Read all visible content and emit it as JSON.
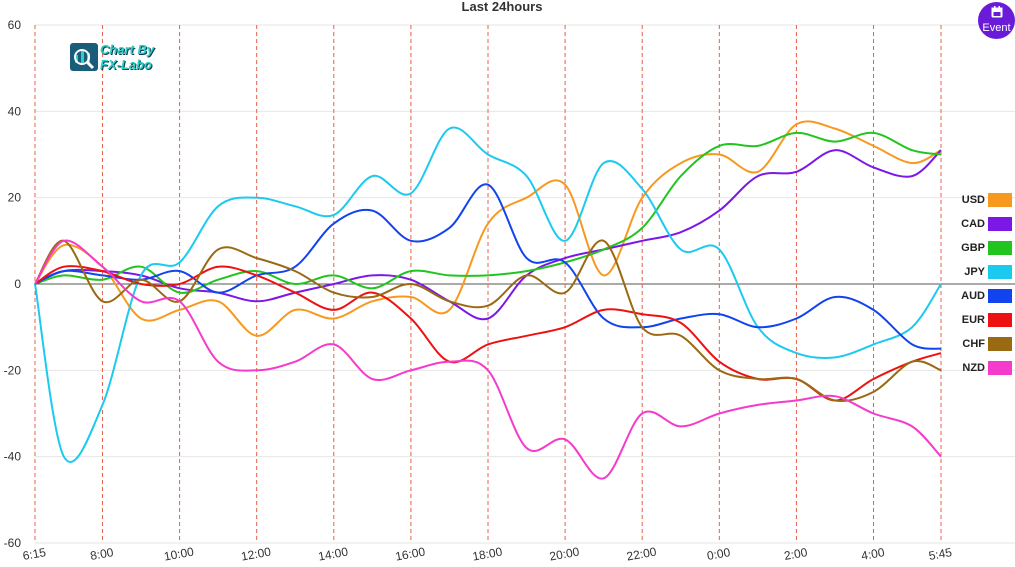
{
  "chart_data": {
    "type": "line",
    "title": "Last 24hours",
    "ylim": [
      -60,
      60
    ],
    "yticks": [
      -60,
      -40,
      -20,
      0,
      20,
      40,
      60
    ],
    "xlim": [
      6.25,
      29.75
    ],
    "xticks": [
      {
        "v": 6.25,
        "label": "6:15"
      },
      {
        "v": 8,
        "label": "8:00"
      },
      {
        "v": 10,
        "label": "10:00"
      },
      {
        "v": 12,
        "label": "12:00"
      },
      {
        "v": 14,
        "label": "14:00"
      },
      {
        "v": 16,
        "label": "16:00"
      },
      {
        "v": 18,
        "label": "18:00"
      },
      {
        "v": 20,
        "label": "20:00"
      },
      {
        "v": 22,
        "label": "22:00"
      },
      {
        "v": 24,
        "label": "0:00"
      },
      {
        "v": 26,
        "label": "2:00"
      },
      {
        "v": 28,
        "label": "4:00"
      },
      {
        "v": 29.75,
        "label": "5:45"
      }
    ],
    "x": [
      6.25,
      7,
      8,
      9,
      10,
      11,
      12,
      13,
      14,
      15,
      16,
      17,
      18,
      19,
      20,
      21,
      22,
      23,
      24,
      25,
      26,
      27,
      28,
      29,
      29.75
    ],
    "series": [
      {
        "name": "USD",
        "color": "#f7991f",
        "values": [
          0,
          9,
          4,
          -8,
          -6,
          -4,
          -12,
          -6,
          -8,
          -4,
          -3,
          -6,
          14,
          20,
          23,
          2,
          20,
          28,
          30,
          26,
          37,
          36,
          32,
          28,
          31
        ]
      },
      {
        "name": "CAD",
        "color": "#7b18e8",
        "values": [
          0,
          3,
          3,
          2,
          -1,
          -2,
          -4,
          -2,
          0,
          2,
          1,
          -4,
          -8,
          2,
          6,
          8,
          10,
          12,
          17,
          25,
          26,
          31,
          27,
          25,
          31
        ]
      },
      {
        "name": "GBP",
        "color": "#22c51f",
        "values": [
          0,
          2,
          1,
          4,
          -2,
          1,
          3,
          0,
          2,
          -1,
          3,
          2,
          2,
          3,
          5,
          8,
          13,
          25,
          32,
          32,
          35,
          33,
          35,
          31,
          30
        ]
      },
      {
        "name": "JPY",
        "color": "#1ccaf0",
        "values": [
          0,
          -40,
          -28,
          2,
          5,
          18,
          20,
          18,
          16,
          25,
          21,
          36,
          30,
          25,
          10,
          28,
          22,
          8,
          8,
          -10,
          -16,
          -17,
          -14,
          -10,
          0
        ]
      },
      {
        "name": "AUD",
        "color": "#1144ee",
        "values": [
          0,
          3,
          2,
          1,
          3,
          -2,
          2,
          4,
          14,
          17,
          10,
          13,
          23,
          6,
          5,
          -8,
          -10,
          -8,
          -7,
          -10,
          -8,
          -3,
          -6,
          -14,
          -15
        ]
      },
      {
        "name": "EUR",
        "color": "#ee1111",
        "values": [
          0,
          4,
          3,
          0,
          0,
          4,
          2,
          -2,
          -6,
          -2,
          -8,
          -18,
          -14,
          -12,
          -10,
          -6,
          -7,
          -9,
          -18,
          -22,
          -22,
          -27,
          -22,
          -18,
          -16
        ]
      },
      {
        "name": "CHF",
        "color": "#9a6a12",
        "values": [
          0,
          10,
          -4,
          1,
          -4,
          8,
          6,
          3,
          -2,
          -3,
          0,
          -4,
          -5,
          2,
          -2,
          10,
          -10,
          -12,
          -20,
          -22,
          -22,
          -27,
          -25,
          -18,
          -20
        ]
      },
      {
        "name": "NZD",
        "color": "#f43bcc",
        "values": [
          0,
          10,
          4,
          -4,
          -4,
          -18,
          -20,
          -18,
          -14,
          -22,
          -20,
          -18,
          -20,
          -38,
          -36,
          -45,
          -30,
          -33,
          -30,
          -28,
          -27,
          -26,
          -30,
          -33,
          -40
        ]
      }
    ]
  },
  "event_button": {
    "label": "Event",
    "icon": "calendar-icon"
  },
  "logo": {
    "line1": "Chart By",
    "line2": "FX-Labo"
  }
}
